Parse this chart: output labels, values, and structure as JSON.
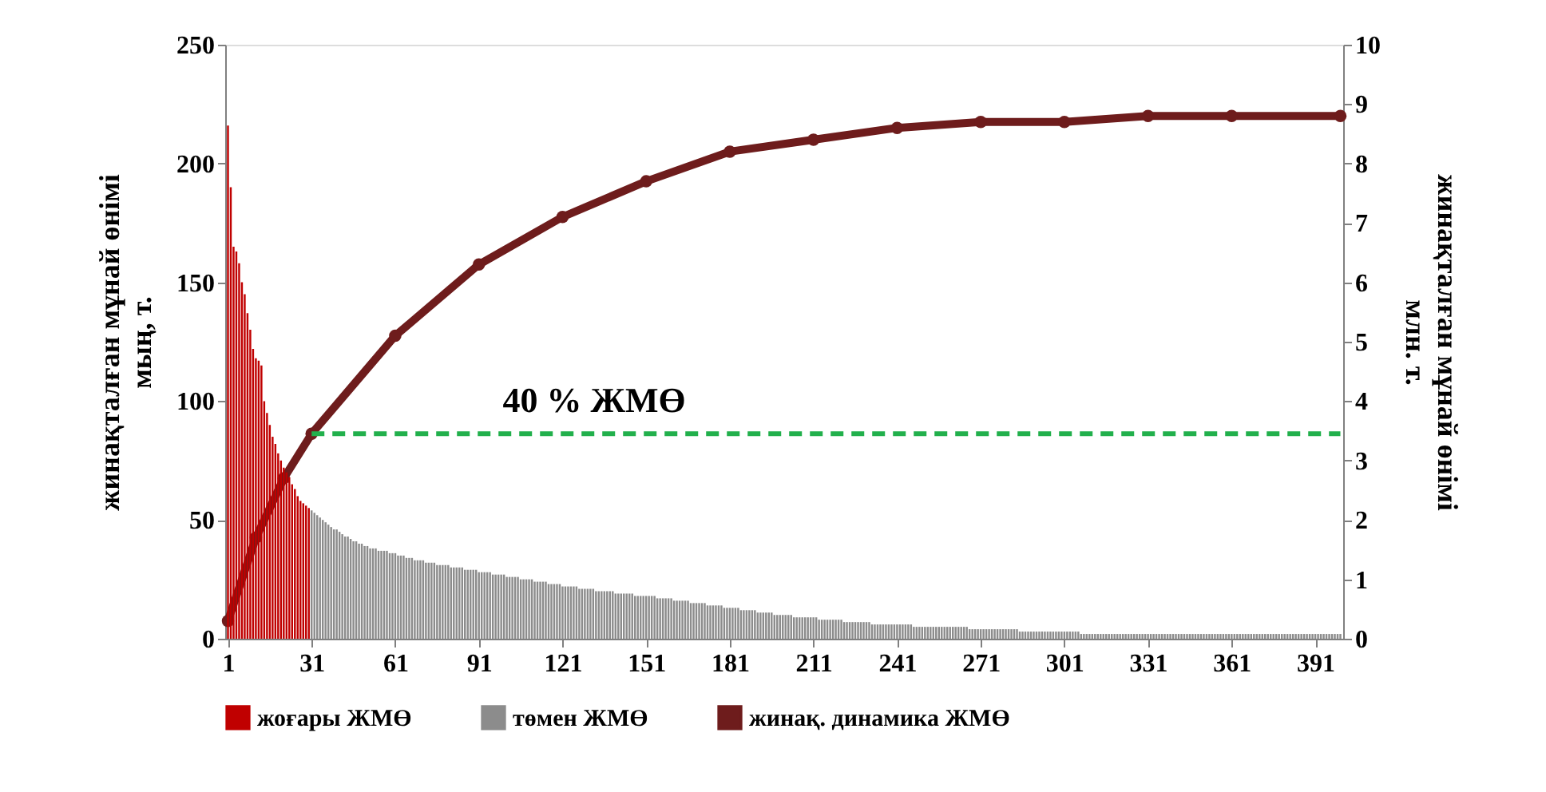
{
  "chart_data": {
    "type": "bar",
    "ylabel": "жинақталған мұнай өнімі\nмың, т.",
    "y2label": "жинақталған мұнай өнімі\nмлн. т.",
    "xlim": [
      0,
      401
    ],
    "xticks": [
      1,
      31,
      61,
      91,
      121,
      151,
      181,
      211,
      241,
      271,
      301,
      331,
      361,
      391
    ],
    "ylim": [
      0,
      250
    ],
    "yticks": [
      0,
      50,
      100,
      150,
      200,
      250
    ],
    "y2lim": [
      0,
      10
    ],
    "y2ticks": [
      0,
      1,
      2,
      3,
      4,
      5,
      6,
      7,
      8,
      9,
      10
    ],
    "grid": false,
    "legend": "bottom",
    "annotations": [
      "40 % ЖМӨ"
    ],
    "series": [
      {
        "name": "жоғары ЖМӨ",
        "color": "#c00000",
        "x": [
          1,
          2,
          3,
          4,
          5,
          6,
          7,
          8,
          9,
          10,
          11,
          12,
          13,
          14,
          15,
          16,
          17,
          18,
          19,
          20,
          21,
          22,
          23,
          24,
          25,
          26,
          27,
          28,
          29,
          30
        ],
        "values": [
          216,
          190,
          165,
          163,
          158,
          150,
          145,
          137,
          130,
          122,
          118,
          117,
          115,
          100,
          95,
          90,
          85,
          82,
          78,
          75,
          72,
          70,
          68,
          65,
          63,
          60,
          58,
          57,
          56,
          55
        ]
      },
      {
        "name": "төмен ЖМӨ",
        "color": "#8c8c8c",
        "x": [
          31,
          32,
          33,
          34,
          35,
          36,
          37,
          38,
          39,
          40,
          41,
          42,
          43,
          44,
          45,
          46,
          47,
          48,
          49,
          50,
          51,
          52,
          53,
          54,
          55,
          56,
          57,
          58,
          59,
          60,
          61,
          62,
          63,
          64,
          65,
          66,
          67,
          68,
          69,
          70,
          71,
          72,
          73,
          74,
          75,
          76,
          77,
          78,
          79,
          80,
          81,
          82,
          83,
          84,
          85,
          86,
          87,
          88,
          89,
          90,
          91,
          92,
          93,
          94,
          95,
          96,
          97,
          98,
          99,
          100,
          101,
          102,
          103,
          104,
          105,
          106,
          107,
          108,
          109,
          110,
          111,
          112,
          113,
          114,
          115,
          116,
          117,
          118,
          119,
          120,
          121,
          122,
          123,
          124,
          125,
          126,
          127,
          128,
          129,
          130,
          131,
          132,
          133,
          134,
          135,
          136,
          137,
          138,
          139,
          140,
          141,
          142,
          143,
          144,
          145,
          146,
          147,
          148,
          149,
          150,
          151,
          152,
          153,
          154,
          155,
          156,
          157,
          158,
          159,
          160,
          161,
          162,
          163,
          164,
          165,
          166,
          167,
          168,
          169,
          170,
          171,
          172,
          173,
          174,
          175,
          176,
          177,
          178,
          179,
          180,
          181,
          182,
          183,
          184,
          185,
          186,
          187,
          188,
          189,
          190,
          191,
          192,
          193,
          194,
          195,
          196,
          197,
          198,
          199,
          200,
          201,
          202,
          203,
          204,
          205,
          206,
          207,
          208,
          209,
          210,
          211,
          212,
          213,
          214,
          215,
          216,
          217,
          218,
          219,
          220,
          221,
          222,
          223,
          224,
          225,
          226,
          227,
          228,
          229,
          230,
          231,
          232,
          233,
          234,
          235,
          236,
          237,
          238,
          239,
          240,
          241,
          242,
          243,
          244,
          245,
          246,
          247,
          248,
          249,
          250,
          251,
          252,
          253,
          254,
          255,
          256,
          257,
          258,
          259,
          260,
          261,
          262,
          263,
          264,
          265,
          266,
          267,
          268,
          269,
          270,
          271,
          272,
          273,
          274,
          275,
          276,
          277,
          278,
          279,
          280,
          281,
          282,
          283,
          284,
          285,
          286,
          287,
          288,
          289,
          290,
          291,
          292,
          293,
          294,
          295,
          296,
          297,
          298,
          299,
          300,
          301,
          302,
          303,
          304,
          305,
          306,
          307,
          308,
          309,
          310,
          311,
          312,
          313,
          314,
          315,
          316,
          317,
          318,
          319,
          320,
          321,
          322,
          323,
          324,
          325,
          326,
          327,
          328,
          329,
          330,
          331,
          332,
          333,
          334,
          335,
          336,
          337,
          338,
          339,
          340,
          341,
          342,
          343,
          344,
          345,
          346,
          347,
          348,
          349,
          350,
          351,
          352,
          353,
          354,
          355,
          356,
          357,
          358,
          359,
          360,
          361,
          362,
          363,
          364,
          365,
          366,
          367,
          368,
          369,
          370,
          371,
          372,
          373,
          374,
          375,
          376,
          377,
          378,
          379,
          380,
          381,
          382,
          383,
          384,
          385,
          386,
          387,
          388,
          389,
          390,
          391,
          392,
          393,
          394,
          395,
          396,
          397,
          398,
          399,
          400
        ],
        "values": [
          54,
          53,
          52,
          51,
          50,
          49,
          48,
          47,
          46,
          46,
          45,
          44,
          43,
          43,
          42,
          41,
          41,
          40,
          40,
          39,
          39,
          38,
          38,
          38,
          37,
          37,
          37,
          37,
          36,
          36,
          36,
          35,
          35,
          35,
          34,
          34,
          34,
          33,
          33,
          33,
          33,
          32,
          32,
          32,
          32,
          31,
          31,
          31,
          31,
          31,
          30,
          30,
          30,
          30,
          30,
          29,
          29,
          29,
          29,
          29,
          28,
          28,
          28,
          28,
          28,
          27,
          27,
          27,
          27,
          27,
          26,
          26,
          26,
          26,
          26,
          25,
          25,
          25,
          25,
          25,
          24,
          24,
          24,
          24,
          24,
          23,
          23,
          23,
          23,
          23,
          22,
          22,
          22,
          22,
          22,
          22,
          21,
          21,
          21,
          21,
          21,
          21,
          20,
          20,
          20,
          20,
          20,
          20,
          20,
          19,
          19,
          19,
          19,
          19,
          19,
          19,
          18,
          18,
          18,
          18,
          18,
          18,
          18,
          18,
          17,
          17,
          17,
          17,
          17,
          17,
          16,
          16,
          16,
          16,
          16,
          16,
          15,
          15,
          15,
          15,
          15,
          15,
          14,
          14,
          14,
          14,
          14,
          14,
          13,
          13,
          13,
          13,
          13,
          13,
          12,
          12,
          12,
          12,
          12,
          12,
          11,
          11,
          11,
          11,
          11,
          11,
          10,
          10,
          10,
          10,
          10,
          10,
          10,
          9,
          9,
          9,
          9,
          9,
          9,
          9,
          9,
          9,
          8,
          8,
          8,
          8,
          8,
          8,
          8,
          8,
          8,
          7,
          7,
          7,
          7,
          7,
          7,
          7,
          7,
          7,
          7,
          6,
          6,
          6,
          6,
          6,
          6,
          6,
          6,
          6,
          6,
          6,
          6,
          6,
          6,
          6,
          5,
          5,
          5,
          5,
          5,
          5,
          5,
          5,
          5,
          5,
          5,
          5,
          5,
          5,
          5,
          5,
          5,
          5,
          5,
          5,
          4,
          4,
          4,
          4,
          4,
          4,
          4,
          4,
          4,
          4,
          4,
          4,
          4,
          4,
          4,
          4,
          4,
          4,
          3,
          3,
          3,
          3,
          3,
          3,
          3,
          3,
          3,
          3,
          3,
          3,
          3,
          3,
          3,
          3,
          3,
          3,
          3,
          3,
          3,
          3,
          2,
          2,
          2,
          2,
          2,
          2,
          2,
          2,
          2,
          2,
          2,
          2,
          2,
          2,
          2,
          2,
          2,
          2,
          2,
          2,
          2,
          2,
          2,
          2,
          2,
          2,
          2,
          2,
          2,
          2,
          2,
          2,
          2,
          2,
          2,
          2,
          2,
          2,
          2,
          2,
          2,
          2,
          2,
          2,
          2,
          2,
          2,
          2,
          2,
          2,
          2,
          2,
          2,
          2,
          2,
          2,
          2,
          2,
          2,
          2,
          2,
          2,
          2,
          2,
          2,
          2,
          2,
          2,
          2,
          2,
          2,
          2,
          2,
          2,
          2,
          2,
          2,
          2,
          2,
          2,
          2,
          2,
          2,
          2,
          2,
          2,
          2,
          2,
          2,
          2,
          2,
          2,
          2,
          2
        ]
      },
      {
        "type": "line",
        "name": "жинақ. динамика ЖМӨ",
        "color": "#6e1c1c",
        "axis": "y2",
        "marker": "circle",
        "line_style": "solid",
        "x": [
          1,
          11,
          21,
          31,
          61,
          91,
          121,
          151,
          181,
          211,
          241,
          271,
          301,
          331,
          361,
          400
        ],
        "values": [
          0.3,
          1.7,
          2.7,
          3.45,
          5.1,
          6.3,
          7.1,
          7.7,
          8.2,
          8.4,
          8.6,
          8.7,
          8.7,
          8.8,
          8.8,
          8.8
        ]
      },
      {
        "type": "line",
        "color": "#22b04c",
        "axis": "y2",
        "marker": "none",
        "line_style": "dashed",
        "x": [
          31,
          400
        ],
        "values": [
          3.45,
          3.45
        ]
      }
    ]
  }
}
